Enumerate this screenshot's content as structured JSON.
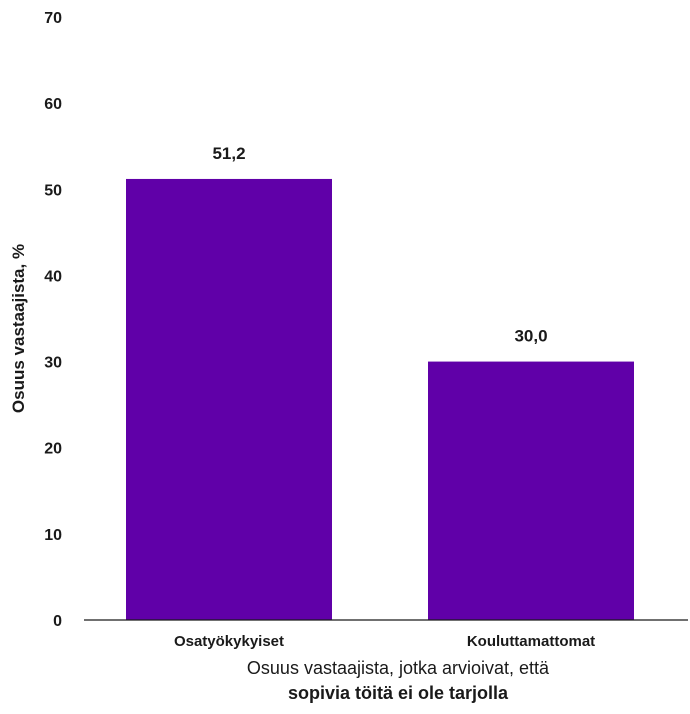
{
  "chart_data": {
    "type": "bar",
    "categories": [
      "Osatyökykyiset",
      "Kouluttamattomat"
    ],
    "values": [
      51.2,
      30.0
    ],
    "value_labels": [
      "51,2",
      "30,0"
    ],
    "ylabel": "Osuus vastaajista, %",
    "xlabel_line1": "Osuus vastaajista, jotka arvioivat, että",
    "xlabel_line2": "sopivia töitä ei ole tarjolla",
    "ylim": [
      0,
      70
    ],
    "yticks": [
      0,
      10,
      20,
      30,
      40,
      50,
      60,
      70
    ],
    "ytick_labels": [
      "0",
      "10",
      "20",
      "30",
      "40",
      "50",
      "60",
      "70"
    ],
    "grid": false,
    "colors": {
      "bar": "#6000a8",
      "axis": "#1a1a1a"
    }
  }
}
